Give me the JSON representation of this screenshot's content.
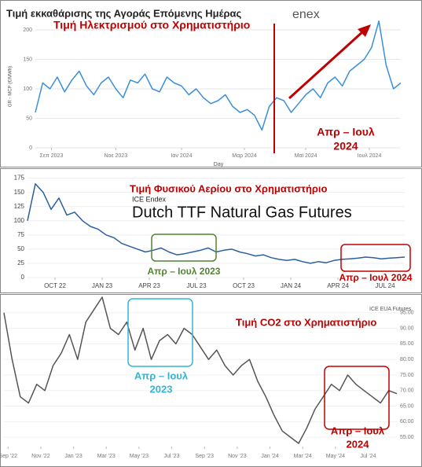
{
  "chart_data": [
    {
      "type": "line",
      "title": "Τιμή εκκαθάρισης της Αγοράς Επόμενης Ημέρας",
      "logo_text": "enex",
      "y_label": "GR - MCP (€/MWh)",
      "x_label": "Day",
      "annotations": [
        [
          "Τιμή Ηλεκτρισμού στο Χρηματιστήριο"
        ],
        [
          "Απρ – Ιουλ",
          "2024"
        ]
      ],
      "values": [
        60,
        110,
        100,
        120,
        95,
        115,
        130,
        105,
        90,
        110,
        120,
        100,
        85,
        115,
        110,
        125,
        100,
        95,
        120,
        110,
        105,
        90,
        100,
        85,
        75,
        80,
        90,
        70,
        60,
        65,
        55,
        30,
        70,
        85,
        80,
        60,
        75,
        90,
        100,
        85,
        110,
        120,
        105,
        130,
        140,
        150,
        170,
        215,
        140,
        100,
        110
      ],
      "color": "#3a8fd9",
      "xlim": [
        0,
        50
      ],
      "xticks": [
        {
          "value": 2.2,
          "label": "Σεπ 2023"
        },
        {
          "value": 11,
          "label": "Νοε 2023"
        },
        {
          "value": 20,
          "label": "Ιαν 2024"
        },
        {
          "value": 28.6,
          "label": "Μαρ 2024"
        },
        {
          "value": 37,
          "label": "Μαϊ 2024"
        },
        {
          "value": 45.7,
          "label": "Ιουλ 2024"
        }
      ],
      "ylim": [
        0,
        220
      ],
      "yticks": [
        0,
        50,
        100,
        150,
        200
      ],
      "grid": true
    },
    {
      "type": "line",
      "title": "Dutch TTF Natural Gas Futures",
      "subtitle": "ICE Endex",
      "annotations": [
        [
          "Τιμή Φυσικού Αερίου στο Χρηματιστήριο"
        ],
        [
          "Απρ – Ιουλ 2023"
        ],
        [
          "Απρ – Ιουλ 2024"
        ]
      ],
      "values": [
        100,
        165,
        150,
        120,
        140,
        110,
        115,
        100,
        90,
        85,
        75,
        70,
        60,
        55,
        50,
        45,
        48,
        52,
        45,
        40,
        42,
        45,
        48,
        52,
        45,
        48,
        50,
        45,
        42,
        38,
        40,
        35,
        32,
        30,
        32,
        28,
        25,
        28,
        26,
        30,
        32,
        33,
        34,
        36,
        35,
        33,
        34,
        35,
        36
      ],
      "color": "#2c5fa0",
      "xlim": [
        0,
        48
      ],
      "xticks": [
        {
          "value": 3.5,
          "label": "OCT 22"
        },
        {
          "value": 9.5,
          "label": "JAN 23"
        },
        {
          "value": 15.5,
          "label": "APR 23"
        },
        {
          "value": 21.5,
          "label": "JUL 23"
        },
        {
          "value": 27.5,
          "label": "OCT 23"
        },
        {
          "value": 33.5,
          "label": "JAN 24"
        },
        {
          "value": 39.5,
          "label": "APR 24"
        },
        {
          "value": 45.5,
          "label": "JUL 24"
        }
      ],
      "ylim": [
        0,
        180
      ],
      "yticks": [
        0,
        25,
        50,
        75,
        100,
        125,
        150,
        175
      ],
      "grid": true
    },
    {
      "type": "line",
      "subtitle": "ICE EUA Futures",
      "annotations": [
        [
          "Τιμή CO2 στο Χρηματιστήριο"
        ],
        [
          "Απρ – Ιουλ",
          "2023"
        ],
        [
          "Απρ – Ιουλ",
          "2024"
        ]
      ],
      "values": [
        95,
        80,
        68,
        66,
        72,
        70,
        78,
        82,
        88,
        80,
        92,
        96,
        100,
        90,
        88,
        92,
        83,
        90,
        80,
        86,
        88,
        85,
        90,
        88,
        84,
        80,
        83,
        78,
        75,
        78,
        80,
        73,
        68,
        62,
        57,
        55,
        53,
        58,
        64,
        68,
        72,
        70,
        75,
        72,
        70,
        68,
        66,
        70,
        69
      ],
      "color": "#555555",
      "xlim": [
        0,
        48
      ],
      "xticks": [
        {
          "value": 0.5,
          "label": "Sep '22"
        },
        {
          "value": 4.5,
          "label": "Nov '22"
        },
        {
          "value": 8.5,
          "label": "Jan '23"
        },
        {
          "value": 12.5,
          "label": "Mar '23"
        },
        {
          "value": 16.5,
          "label": "May '23"
        },
        {
          "value": 20.5,
          "label": "Jul '23"
        },
        {
          "value": 24.5,
          "label": "Sep '23"
        },
        {
          "value": 28.5,
          "label": "Nov '23"
        },
        {
          "value": 32.5,
          "label": "Jan '24"
        },
        {
          "value": 36.5,
          "label": "Mar '24"
        },
        {
          "value": 40.5,
          "label": "May '24"
        },
        {
          "value": 44.5,
          "label": "Jul '24"
        }
      ],
      "ylim": [
        52,
        100
      ],
      "yticks": [
        {
          "value": 55,
          "label": "55.00"
        },
        {
          "value": 60,
          "label": "60.00"
        },
        {
          "value": 65,
          "label": "65.00"
        },
        {
          "value": 70,
          "label": "70.00"
        },
        {
          "value": 75,
          "label": "75.00"
        },
        {
          "value": 80,
          "label": "80.00"
        },
        {
          "value": 85,
          "label": "85.00"
        },
        {
          "value": 90,
          "label": "90.00"
        },
        {
          "value": 95,
          "label": "95.00"
        }
      ],
      "grid": true
    }
  ]
}
